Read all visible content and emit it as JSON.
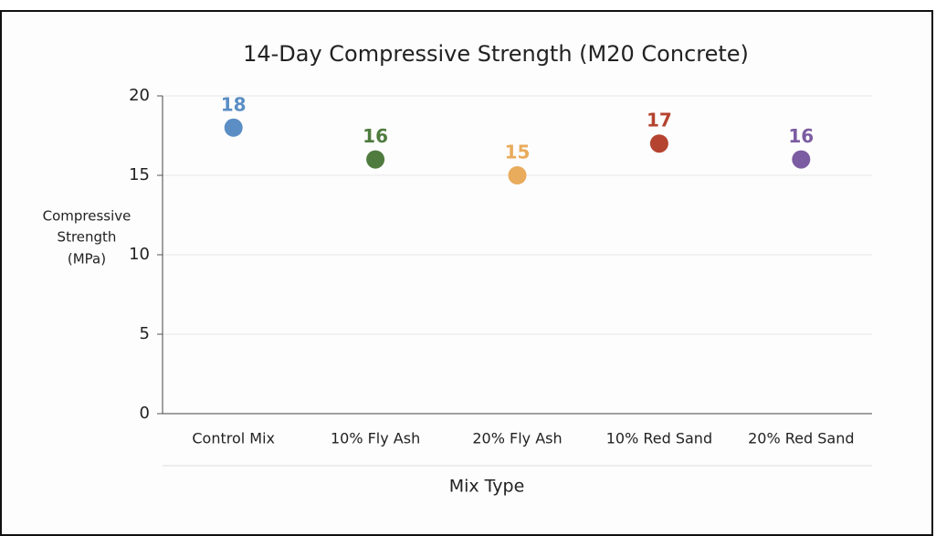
{
  "chart_data": {
    "type": "scatter",
    "title": "14-Day Compressive Strength (M20 Concrete)",
    "y_label": [
      "Compressive",
      "Strength",
      "(MPa)"
    ],
    "x_label": "Mix Type",
    "categories": [
      "Control Mix",
      "10% Fly Ash",
      "20% Fly Ash",
      "10% Red Sand",
      "20% Red Sand"
    ],
    "values": [
      18,
      16,
      15,
      17,
      16
    ],
    "colors": [
      "#5b8ec4",
      "#4f7b3f",
      "#e9ab5c",
      "#b4432f",
      "#7b5ba1"
    ],
    "ylim": [
      0,
      20
    ],
    "yticks": [
      0,
      5,
      10,
      15,
      20
    ],
    "grid": true
  }
}
